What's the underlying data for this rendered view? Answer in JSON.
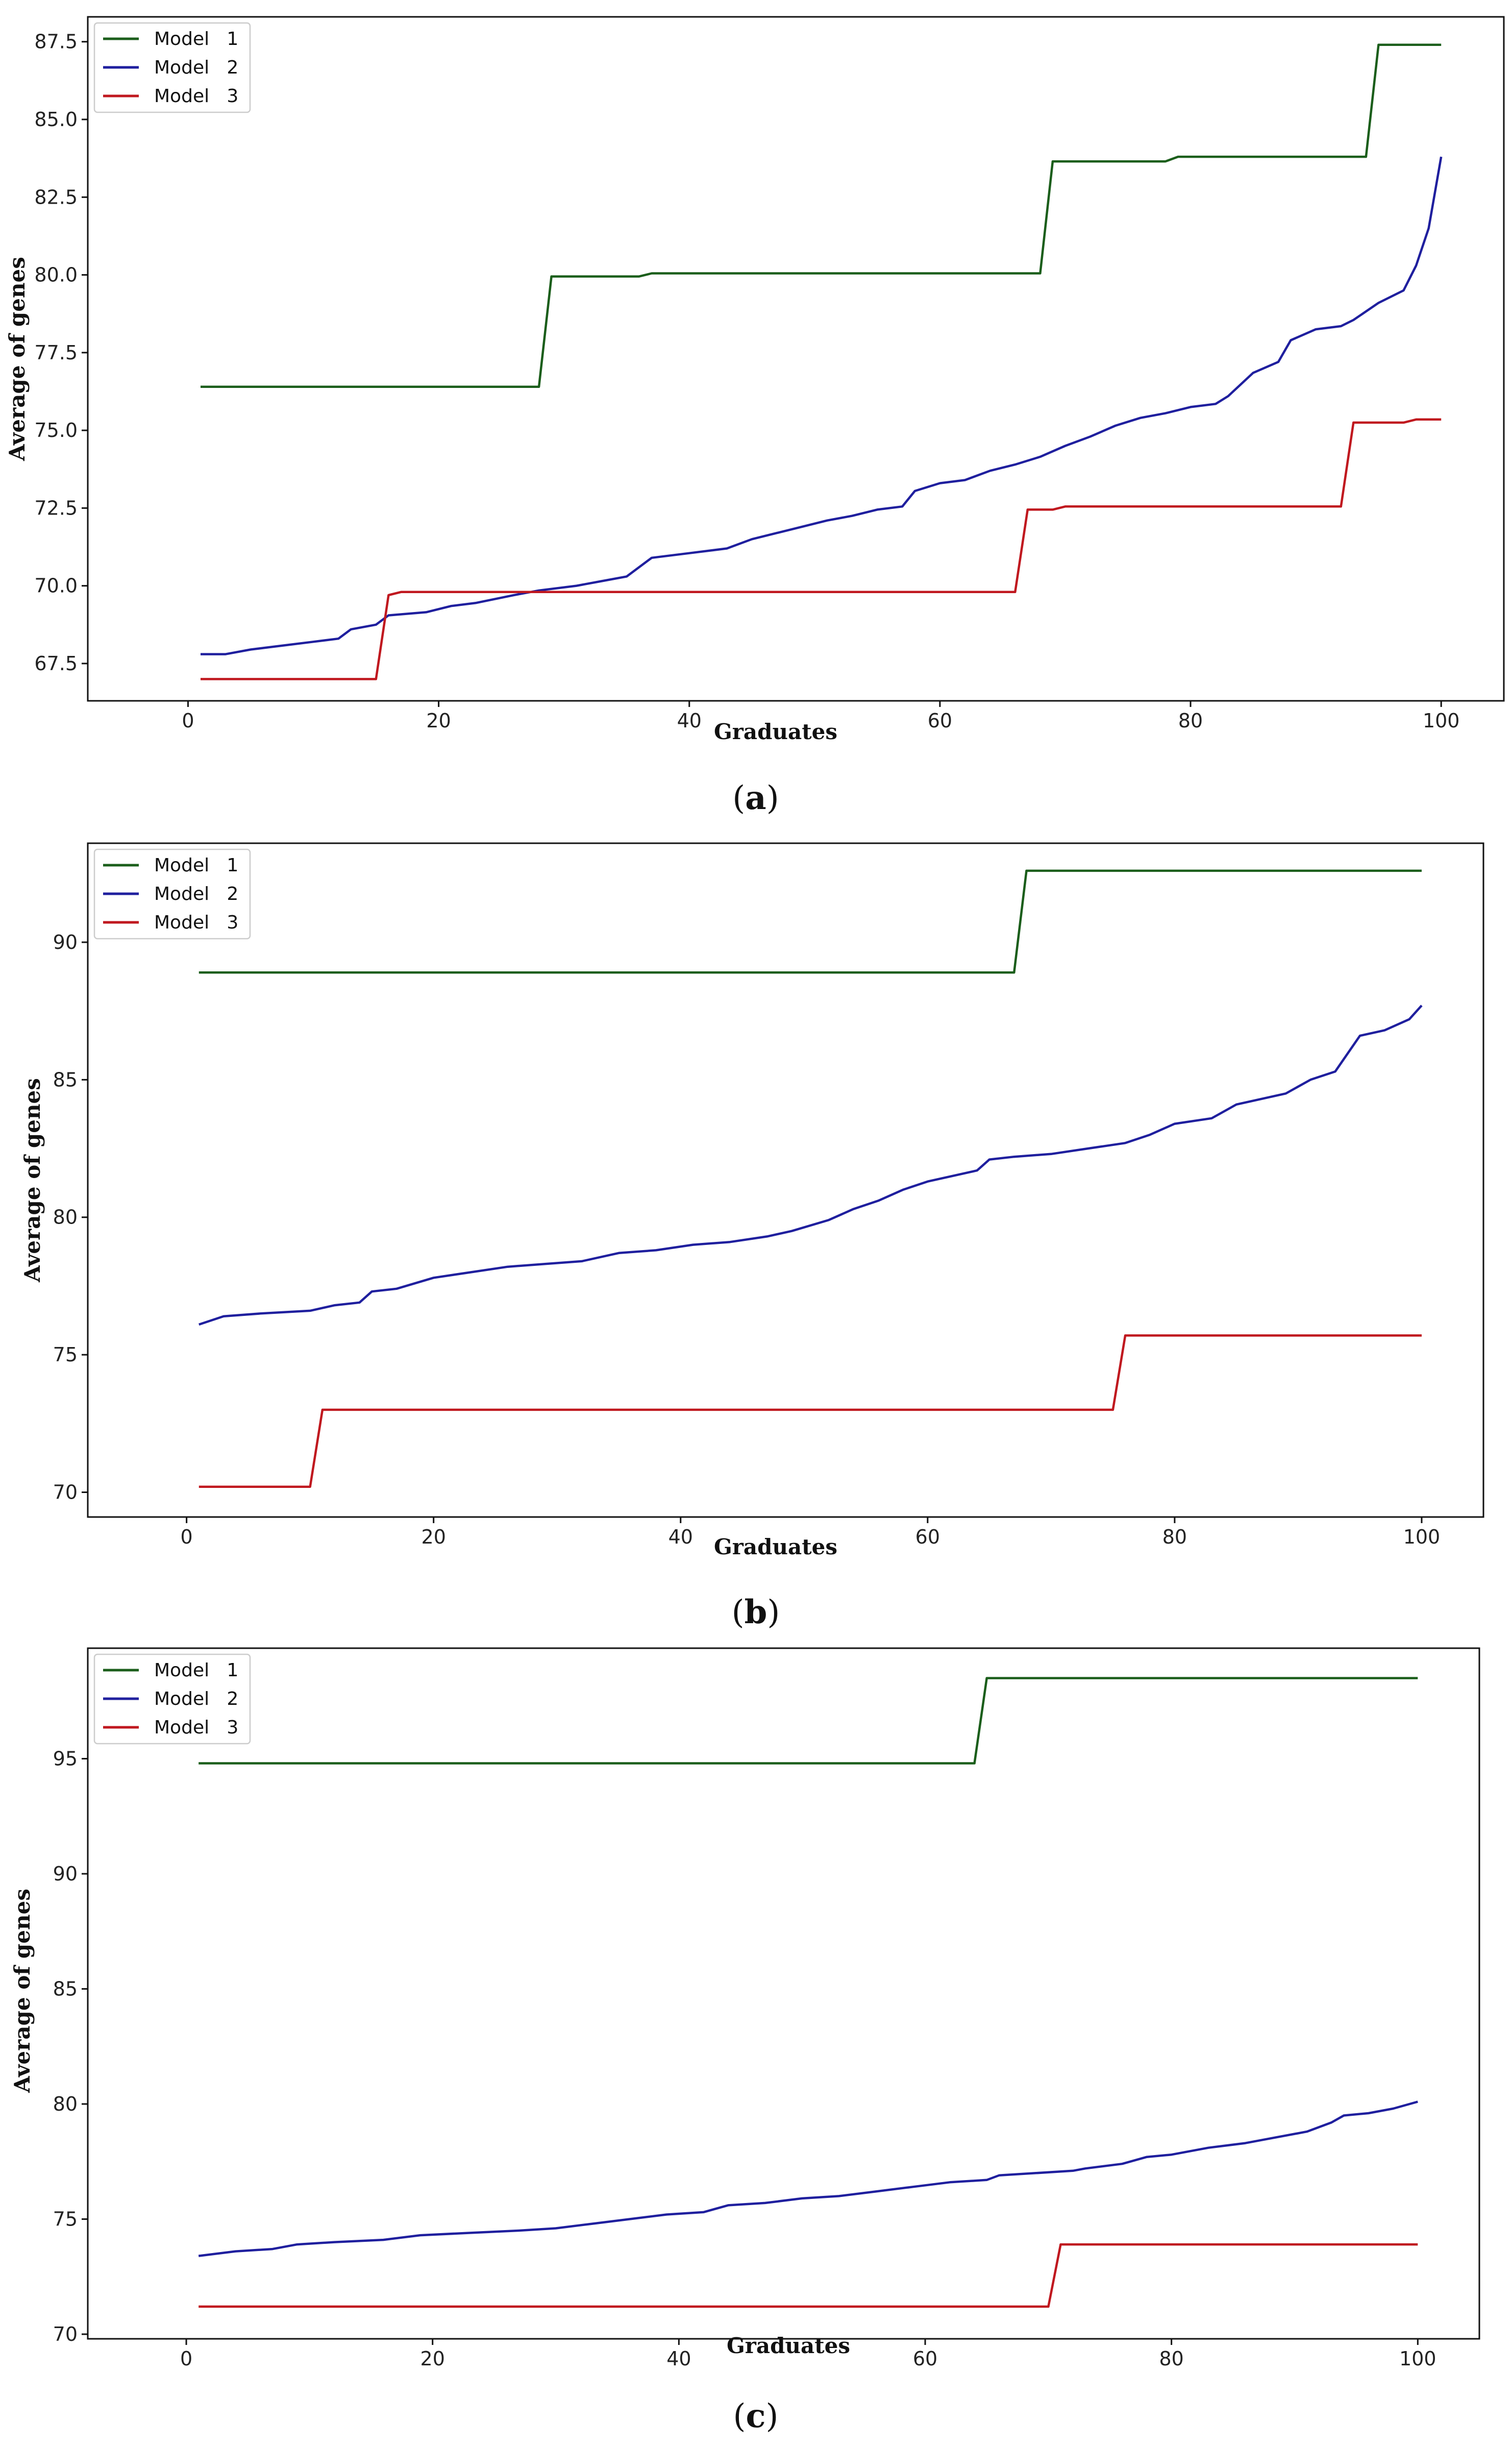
{
  "chart_data": [
    {
      "type": "line",
      "caption": "(a)",
      "caption_letter": "a",
      "xlabel": "Graduates",
      "ylabel": "Average of genes",
      "xlim": [
        -8,
        105
      ],
      "ylim": [
        66.3,
        88.3
      ],
      "xticks": [
        0,
        20,
        40,
        60,
        80,
        100
      ],
      "yticks": [
        67.5,
        70.0,
        72.5,
        75.0,
        77.5,
        80.0,
        82.5,
        85.0,
        87.5
      ],
      "ytick_labels": [
        "67.5",
        "70.0",
        "72.5",
        "75.0",
        "77.5",
        "80.0",
        "82.5",
        "85.0",
        "87.5"
      ],
      "legend_position": "top-left",
      "series": [
        {
          "name": "Model   1",
          "color": "#1b5e1b",
          "points": [
            [
              1,
              76.4
            ],
            [
              28,
              76.4
            ],
            [
              29,
              79.95
            ],
            [
              36,
              79.95
            ],
            [
              37,
              80.05
            ],
            [
              68,
              80.05
            ],
            [
              69,
              83.65
            ],
            [
              78,
              83.65
            ],
            [
              79,
              83.8
            ],
            [
              94,
              83.8
            ],
            [
              95,
              87.4
            ],
            [
              100,
              87.4
            ]
          ]
        },
        {
          "name": "Model   2",
          "color": "#1f1f9e",
          "points": [
            [
              1,
              67.8
            ],
            [
              3,
              67.8
            ],
            [
              5,
              67.95
            ],
            [
              8,
              68.1
            ],
            [
              10,
              68.2
            ],
            [
              12,
              68.3
            ],
            [
              13,
              68.6
            ],
            [
              15,
              68.75
            ],
            [
              16,
              69.05
            ],
            [
              19,
              69.15
            ],
            [
              21,
              69.35
            ],
            [
              23,
              69.45
            ],
            [
              26,
              69.7
            ],
            [
              28,
              69.85
            ],
            [
              31,
              70.0
            ],
            [
              33,
              70.15
            ],
            [
              35,
              70.3
            ],
            [
              37,
              70.9
            ],
            [
              40,
              71.05
            ],
            [
              43,
              71.2
            ],
            [
              45,
              71.5
            ],
            [
              47,
              71.7
            ],
            [
              49,
              71.9
            ],
            [
              51,
              72.1
            ],
            [
              53,
              72.25
            ],
            [
              55,
              72.45
            ],
            [
              57,
              72.55
            ],
            [
              58,
              73.05
            ],
            [
              60,
              73.3
            ],
            [
              62,
              73.4
            ],
            [
              64,
              73.7
            ],
            [
              66,
              73.9
            ],
            [
              68,
              74.15
            ],
            [
              70,
              74.5
            ],
            [
              72,
              74.8
            ],
            [
              74,
              75.15
            ],
            [
              76,
              75.4
            ],
            [
              78,
              75.55
            ],
            [
              80,
              75.75
            ],
            [
              82,
              75.85
            ],
            [
              83,
              76.1
            ],
            [
              85,
              76.85
            ],
            [
              87,
              77.2
            ],
            [
              88,
              77.9
            ],
            [
              90,
              78.25
            ],
            [
              92,
              78.35
            ],
            [
              93,
              78.55
            ],
            [
              95,
              79.1
            ],
            [
              97,
              79.5
            ],
            [
              98,
              80.3
            ],
            [
              99,
              81.5
            ],
            [
              100,
              83.8
            ]
          ]
        },
        {
          "name": "Model   3",
          "color": "#c0181f",
          "points": [
            [
              1,
              67.0
            ],
            [
              15,
              67.0
            ],
            [
              16,
              69.7
            ],
            [
              17,
              69.8
            ],
            [
              66,
              69.8
            ],
            [
              67,
              72.45
            ],
            [
              69,
              72.45
            ],
            [
              70,
              72.55
            ],
            [
              92,
              72.55
            ],
            [
              93,
              75.25
            ],
            [
              97,
              75.25
            ],
            [
              98,
              75.35
            ],
            [
              100,
              75.35
            ]
          ]
        }
      ]
    },
    {
      "type": "line",
      "caption": "(b)",
      "caption_letter": "b",
      "xlabel": "Graduates",
      "ylabel": "Average of genes",
      "xlim": [
        -8,
        105
      ],
      "ylim": [
        69.1,
        93.6
      ],
      "xticks": [
        0,
        20,
        40,
        60,
        80,
        100
      ],
      "yticks": [
        70,
        75,
        80,
        85,
        90
      ],
      "ytick_labels": [
        "70",
        "75",
        "80",
        "85",
        "90"
      ],
      "legend_position": "top-left",
      "series": [
        {
          "name": "Model   1",
          "color": "#1b5e1b",
          "points": [
            [
              1,
              88.9
            ],
            [
              67,
              88.9
            ],
            [
              68,
              92.6
            ],
            [
              100,
              92.6
            ]
          ]
        },
        {
          "name": "Model   2",
          "color": "#1f1f9e",
          "points": [
            [
              1,
              76.1
            ],
            [
              3,
              76.4
            ],
            [
              6,
              76.5
            ],
            [
              10,
              76.6
            ],
            [
              12,
              76.8
            ],
            [
              14,
              76.9
            ],
            [
              15,
              77.3
            ],
            [
              17,
              77.4
            ],
            [
              20,
              77.8
            ],
            [
              23,
              78.0
            ],
            [
              26,
              78.2
            ],
            [
              29,
              78.3
            ],
            [
              32,
              78.4
            ],
            [
              35,
              78.7
            ],
            [
              38,
              78.8
            ],
            [
              41,
              79.0
            ],
            [
              44,
              79.1
            ],
            [
              47,
              79.3
            ],
            [
              49,
              79.5
            ],
            [
              52,
              79.9
            ],
            [
              54,
              80.3
            ],
            [
              56,
              80.6
            ],
            [
              58,
              81.0
            ],
            [
              60,
              81.3
            ],
            [
              62,
              81.5
            ],
            [
              64,
              81.7
            ],
            [
              65,
              82.1
            ],
            [
              67,
              82.2
            ],
            [
              70,
              82.3
            ],
            [
              73,
              82.5
            ],
            [
              76,
              82.7
            ],
            [
              78,
              83.0
            ],
            [
              80,
              83.4
            ],
            [
              83,
              83.6
            ],
            [
              85,
              84.1
            ],
            [
              87,
              84.3
            ],
            [
              89,
              84.5
            ],
            [
              91,
              85.0
            ],
            [
              93,
              85.3
            ],
            [
              95,
              86.6
            ],
            [
              97,
              86.8
            ],
            [
              99,
              87.2
            ],
            [
              100,
              87.7
            ]
          ]
        },
        {
          "name": "Model   3",
          "color": "#c0181f",
          "points": [
            [
              1,
              70.2
            ],
            [
              10,
              70.2
            ],
            [
              11,
              73.0
            ],
            [
              75,
              73.0
            ],
            [
              76,
              75.7
            ],
            [
              100,
              75.7
            ]
          ]
        }
      ]
    },
    {
      "type": "line",
      "caption": "(c)",
      "caption_letter": "c",
      "xlabel": "Graduates",
      "ylabel": "Average of genes",
      "xlim": [
        -8,
        105
      ],
      "ylim": [
        69.8,
        99.8
      ],
      "xticks": [
        0,
        20,
        40,
        60,
        80,
        100
      ],
      "yticks": [
        70,
        75,
        80,
        85,
        90,
        95
      ],
      "ytick_labels": [
        "70",
        "75",
        "80",
        "85",
        "90",
        "95"
      ],
      "legend_position": "top-left",
      "series": [
        {
          "name": "Model   1",
          "color": "#1b5e1b",
          "points": [
            [
              1,
              94.8
            ],
            [
              64,
              94.8
            ],
            [
              65,
              98.5
            ],
            [
              100,
              98.5
            ]
          ]
        },
        {
          "name": "Model   2",
          "color": "#1f1f9e",
          "points": [
            [
              1,
              73.4
            ],
            [
              4,
              73.6
            ],
            [
              7,
              73.7
            ],
            [
              9,
              73.9
            ],
            [
              12,
              74.0
            ],
            [
              16,
              74.1
            ],
            [
              19,
              74.3
            ],
            [
              23,
              74.4
            ],
            [
              27,
              74.5
            ],
            [
              30,
              74.6
            ],
            [
              33,
              74.8
            ],
            [
              36,
              75.0
            ],
            [
              39,
              75.2
            ],
            [
              42,
              75.3
            ],
            [
              44,
              75.6
            ],
            [
              47,
              75.7
            ],
            [
              50,
              75.9
            ],
            [
              53,
              76.0
            ],
            [
              56,
              76.2
            ],
            [
              59,
              76.4
            ],
            [
              62,
              76.6
            ],
            [
              65,
              76.7
            ],
            [
              66,
              76.9
            ],
            [
              69,
              77.0
            ],
            [
              72,
              77.1
            ],
            [
              73,
              77.2
            ],
            [
              76,
              77.4
            ],
            [
              78,
              77.7
            ],
            [
              80,
              77.8
            ],
            [
              83,
              78.1
            ],
            [
              86,
              78.3
            ],
            [
              88,
              78.5
            ],
            [
              91,
              78.8
            ],
            [
              93,
              79.2
            ],
            [
              94,
              79.5
            ],
            [
              96,
              79.6
            ],
            [
              98,
              79.8
            ],
            [
              100,
              80.1
            ]
          ]
        },
        {
          "name": "Model   3",
          "color": "#c0181f",
          "points": [
            [
              1,
              71.2
            ],
            [
              70,
              71.2
            ],
            [
              71,
              73.9
            ],
            [
              100,
              73.9
            ]
          ]
        }
      ]
    }
  ]
}
